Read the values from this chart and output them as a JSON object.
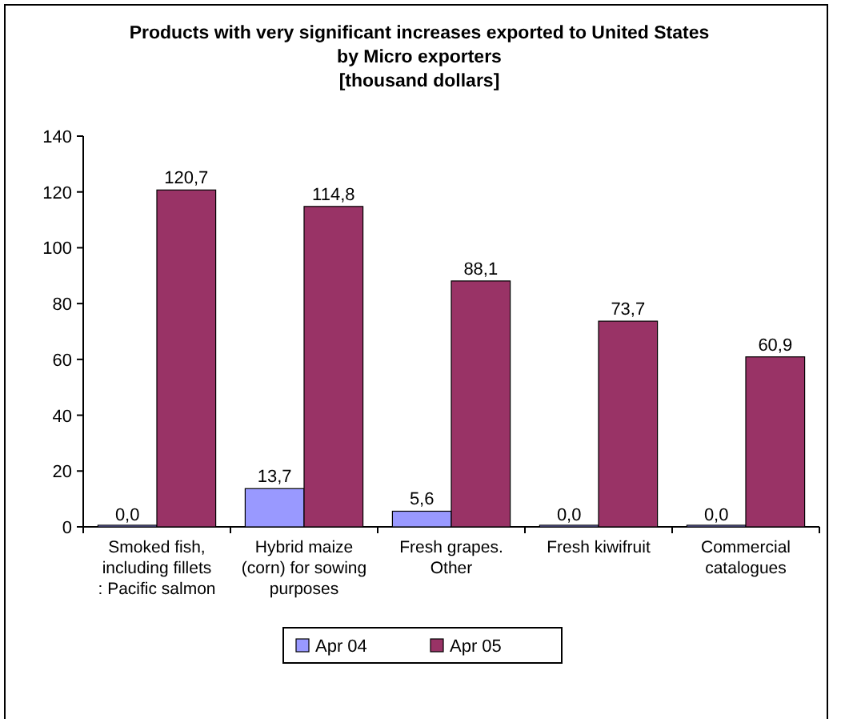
{
  "chart_data": {
    "type": "bar",
    "title": "Products with very significant increases exported  to United States by Micro exporters",
    "subtitle": "[thousand dollars]",
    "categories": [
      "Smoked fish, including fillets : Pacific salmon",
      "Hybrid maize (corn) for sowing purposes",
      "Fresh grapes. Other",
      "Fresh kiwifruit",
      "Commercial catalogues"
    ],
    "series": [
      {
        "name": "Apr 04",
        "color": "#9999ff",
        "values": [
          0,
          13.7,
          5.6,
          0,
          0
        ],
        "value_labels": [
          "0,0",
          "13,7",
          "5,6",
          "0,0",
          "0,0"
        ]
      },
      {
        "name": "Apr 05",
        "color": "#993366",
        "values": [
          120.7,
          114.8,
          88.1,
          73.7,
          60.9
        ],
        "value_labels": [
          "120,7",
          "114,8",
          "88,1",
          "73,7",
          "60,9"
        ]
      }
    ],
    "ylim": [
      0,
      140
    ],
    "yticks": [
      0,
      20,
      40,
      60,
      80,
      100,
      120,
      140
    ],
    "grid": false,
    "legend": "bottom"
  }
}
